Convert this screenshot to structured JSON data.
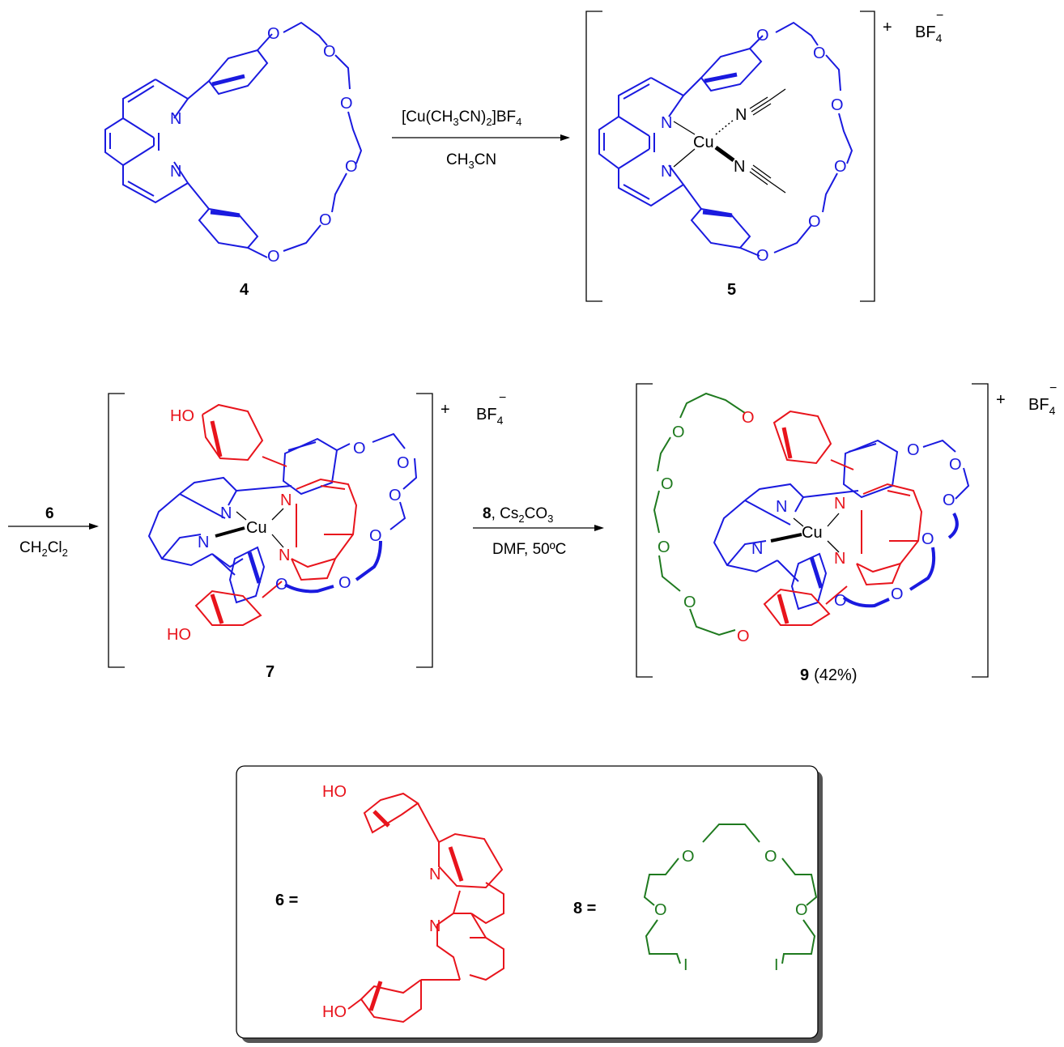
{
  "colors": {
    "blue": "#1a1adf",
    "red": "#e8141c",
    "green": "#1f7a1f",
    "black": "#000000"
  },
  "labels": {
    "atom_N": "N",
    "atom_O": "O",
    "atom_Cu": "Cu",
    "atom_I": "I",
    "atom_HO": "HO"
  },
  "compounds": {
    "c4": "4",
    "c5": "5",
    "c7": "7",
    "c9": "9",
    "c9_yield": "(42%)",
    "c6": "6",
    "c8": "8"
  },
  "charges": {
    "plus": "+",
    "counterion": "BF",
    "counterion_sub": "4",
    "minus": "−"
  },
  "arrow1": {
    "above_1": "[Cu(CH",
    "above_sub1": "3",
    "above_2": "CN)",
    "above_sub2": "2",
    "above_3": "]BF",
    "above_sub3": "4",
    "below_1": "CH",
    "below_sub1": "3",
    "below_2": "CN"
  },
  "arrow2": {
    "above": "6",
    "below_1": "CH",
    "below_sub1": "2",
    "below_2": "Cl",
    "below_sub2": "2"
  },
  "arrow3": {
    "above_bold": "8",
    "above_1": ", Cs",
    "above_sub1": "2",
    "above_2": "CO",
    "above_sub2": "3",
    "below": "DMF, 50ºC"
  },
  "legend": {
    "eq6": "6 =",
    "eq8": "8 ="
  }
}
